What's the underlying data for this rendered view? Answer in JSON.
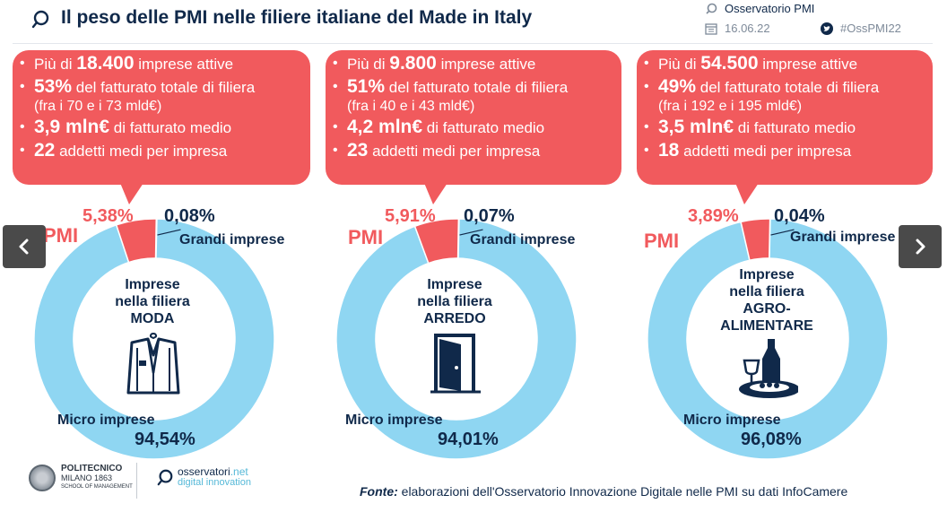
{
  "header": {
    "title": "Il peso delle PMI nelle filiere italiane del Made in Italy",
    "org": "Osservatorio PMI",
    "date": "16.06.22",
    "hashtag": "#OssPMI22",
    "icons": [
      "observatory-logo-icon",
      "calendar-icon",
      "twitter-icon"
    ]
  },
  "colors": {
    "navy": "#10294a",
    "red": "#f15a5d",
    "light_blue": "#8fd6f2",
    "white": "#ffffff"
  },
  "nav": {
    "prev_icon": "chevron-left-icon",
    "next_icon": "chevron-right-icon"
  },
  "panels": [
    {
      "id": "moda",
      "card": {
        "l1_pre": "Più di",
        "l1_big": "18.400",
        "l1_post": "imprese attive",
        "l2_big": "53%",
        "l2_post": "del fatturato totale di filiera",
        "l2_sub": "(fra i 70 e i 73 mld€)",
        "l3_big": "3,9 mln€",
        "l3_post": "di fatturato medio",
        "l4_big": "22",
        "l4_post": "addetti medi per impresa"
      },
      "donut": {
        "micro": 94.54,
        "pmi": 5.38,
        "grandi": 0.08
      },
      "labels": {
        "pmi_pct": "5,38%",
        "grandi_pct": "0,08%",
        "micro_pct": "94,54%",
        "pmi": "PMI",
        "grandi": "Grandi imprese",
        "micro": "Micro imprese"
      },
      "center": {
        "l1": "Imprese",
        "l2": "nella filiera",
        "l3": "MODA",
        "l4": ""
      },
      "icon": "suit-jacket-icon"
    },
    {
      "id": "arredo",
      "card": {
        "l1_pre": "Più di",
        "l1_big": "9.800",
        "l1_post": "imprese attive",
        "l2_big": "51%",
        "l2_post": "del fatturato totale di filiera",
        "l2_sub": "(fra i 40 e i 43 mld€)",
        "l3_big": "4,2 mln€",
        "l3_post": "di fatturato medio",
        "l4_big": "23",
        "l4_post": "addetti medi per impresa"
      },
      "donut": {
        "micro": 94.01,
        "pmi": 5.91,
        "grandi": 0.07
      },
      "labels": {
        "pmi_pct": "5,91%",
        "grandi_pct": "0,07%",
        "micro_pct": "94,01%",
        "pmi": "PMI",
        "grandi": "Grandi imprese",
        "micro": "Micro imprese"
      },
      "center": {
        "l1": "Imprese",
        "l2": "nella filiera",
        "l3": "ARREDO",
        "l4": ""
      },
      "icon": "open-door-icon"
    },
    {
      "id": "agroalimentare",
      "card": {
        "l1_pre": "Più di",
        "l1_big": "54.500",
        "l1_post": "imprese attive",
        "l2_big": "49%",
        "l2_post": "del fatturato totale di filiera",
        "l2_sub": "(fra i 192 e i 195 mld€)",
        "l3_big": "3,5 mln€",
        "l3_post": "di fatturato medio",
        "l4_big": "18",
        "l4_post": "addetti medi per impresa"
      },
      "donut": {
        "micro": 96.08,
        "pmi": 3.89,
        "grandi": 0.04
      },
      "labels": {
        "pmi_pct": "3,89%",
        "grandi_pct": "0,04%",
        "micro_pct": "96,08%",
        "pmi": "PMI",
        "grandi": "Grandi imprese",
        "micro": "Micro imprese"
      },
      "center": {
        "l1": "Imprese",
        "l2": "nella filiera",
        "l3": "AGRO-",
        "l4": "ALIMENTARE"
      },
      "icon": "wine-and-food-icon"
    }
  ],
  "footer": {
    "polimi_name": "POLITECNICO",
    "polimi_city": "MILANO 1863",
    "polimi_school": "SCHOOL OF MANAGEMENT",
    "oss_brand": "osservatori",
    "oss_tld": ".net",
    "oss_sub": "digital innovation",
    "source_label": "Fonte:",
    "source_text": "elaborazioni dell'Osservatorio Innovazione Digitale nelle PMI su dati InfoCamere"
  }
}
